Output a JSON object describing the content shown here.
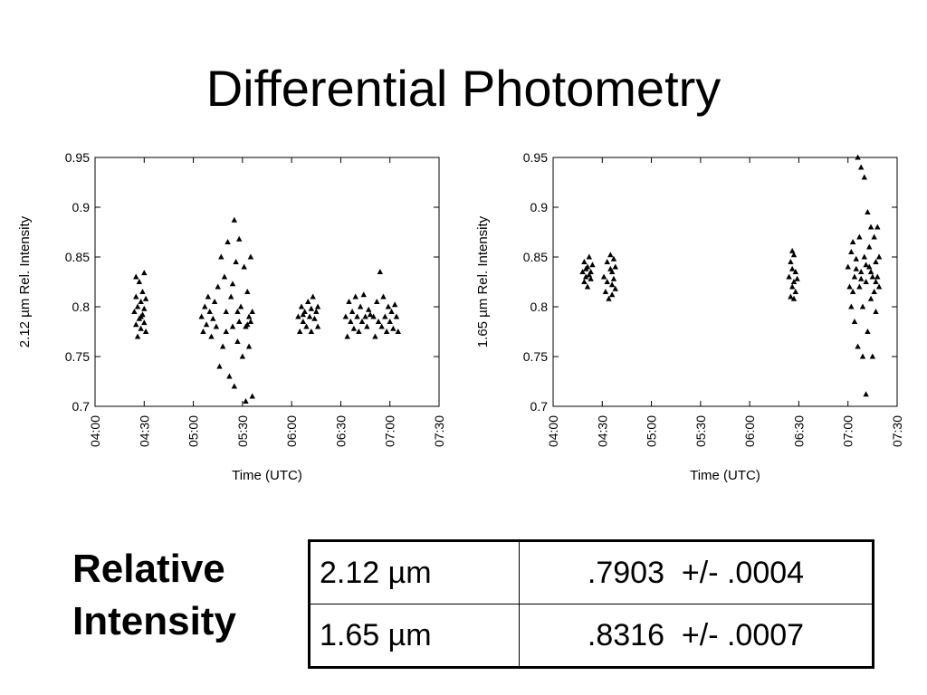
{
  "slide": {
    "title": "Differential Photometry"
  },
  "summary": {
    "label_line1": "Relative",
    "label_line2": "Intensity",
    "rows": [
      {
        "band": "2.12 µm",
        "value": ".7903  +/- .0004"
      },
      {
        "band": "1.65 µm",
        "value": ".8316  +/- .0007"
      }
    ]
  },
  "chart_data": [
    {
      "type": "scatter",
      "marker": "triangle",
      "xlabel": "Time (UTC)",
      "ylabel": "2.12 µm Rel. Intensity",
      "xlim": [
        "04:00",
        "07:30"
      ],
      "ylim": [
        0.7,
        0.95
      ],
      "x_ticks": [
        "04:00",
        "04:30",
        "05:00",
        "05:30",
        "06:00",
        "06:30",
        "07:00",
        "07:30"
      ],
      "y_ticks": [
        "0.95",
        "0.9",
        "0.85",
        "0.8",
        "0.75",
        "0.7"
      ],
      "grid": false,
      "series": [
        {
          "points": [
            [
              "04:24",
              0.795
            ],
            [
              "04:25",
              0.782
            ],
            [
              "04:25",
              0.81
            ],
            [
              "04:26",
              0.77
            ],
            [
              "04:26",
              0.8
            ],
            [
              "04:27",
              0.788
            ],
            [
              "04:27",
              0.825
            ],
            [
              "04:28",
              0.778
            ],
            [
              "04:28",
              0.805
            ],
            [
              "04:29",
              0.792
            ],
            [
              "04:29",
              0.815
            ],
            [
              "04:30",
              0.784
            ],
            [
              "04:30",
              0.798
            ],
            [
              "04:31",
              0.775
            ],
            [
              "04:31",
              0.808
            ],
            [
              "04:25",
              0.83
            ],
            [
              "04:28",
              0.79
            ],
            [
              "04:30",
              0.834
            ],
            [
              "05:05",
              0.79
            ],
            [
              "05:06",
              0.775
            ],
            [
              "05:07",
              0.8
            ],
            [
              "05:08",
              0.782
            ],
            [
              "05:09",
              0.81
            ],
            [
              "05:10",
              0.795
            ],
            [
              "05:11",
              0.77
            ],
            [
              "05:12",
              0.788
            ],
            [
              "05:13",
              0.805
            ],
            [
              "05:14",
              0.78
            ],
            [
              "05:15",
              0.82
            ],
            [
              "05:16",
              0.74
            ],
            [
              "05:17",
              0.85
            ],
            [
              "05:18",
              0.76
            ],
            [
              "05:19",
              0.83
            ],
            [
              "05:20",
              0.795
            ],
            [
              "05:21",
              0.865
            ],
            [
              "05:22",
              0.73
            ],
            [
              "05:23",
              0.81
            ],
            [
              "05:24",
              0.78
            ],
            [
              "05:25",
              0.887
            ],
            [
              "05:25",
              0.72
            ],
            [
              "05:26",
              0.845
            ],
            [
              "05:27",
              0.795
            ],
            [
              "05:27",
              0.765
            ],
            [
              "05:28",
              0.868
            ],
            [
              "05:29",
              0.8
            ],
            [
              "05:30",
              0.75
            ],
            [
              "05:31",
              0.84
            ],
            [
              "05:32",
              0.78
            ],
            [
              "05:32",
              0.705
            ],
            [
              "05:33",
              0.815
            ],
            [
              "05:34",
              0.79
            ],
            [
              "05:34",
              0.76
            ],
            [
              "05:35",
              0.85
            ],
            [
              "05:35",
              0.785
            ],
            [
              "05:36",
              0.71
            ],
            [
              "05:36",
              0.795
            ],
            [
              "05:20",
              0.775
            ],
            [
              "05:28",
              0.785
            ],
            [
              "05:33",
              0.782
            ],
            [
              "05:24",
              0.823
            ],
            [
              "06:04",
              0.79
            ],
            [
              "06:05",
              0.775
            ],
            [
              "06:06",
              0.8
            ],
            [
              "06:07",
              0.785
            ],
            [
              "06:08",
              0.795
            ],
            [
              "06:09",
              0.78
            ],
            [
              "06:10",
              0.805
            ],
            [
              "06:11",
              0.79
            ],
            [
              "06:12",
              0.775
            ],
            [
              "06:13",
              0.81
            ],
            [
              "06:14",
              0.788
            ],
            [
              "06:15",
              0.795
            ],
            [
              "06:16",
              0.78
            ],
            [
              "06:16",
              0.8
            ],
            [
              "06:07",
              0.792
            ],
            [
              "06:12",
              0.798
            ],
            [
              "06:33",
              0.79
            ],
            [
              "06:34",
              0.77
            ],
            [
              "06:35",
              0.805
            ],
            [
              "06:36",
              0.785
            ],
            [
              "06:37",
              0.795
            ],
            [
              "06:38",
              0.778
            ],
            [
              "06:39",
              0.81
            ],
            [
              "06:40",
              0.79
            ],
            [
              "06:41",
              0.775
            ],
            [
              "06:42",
              0.8
            ],
            [
              "06:43",
              0.785
            ],
            [
              "06:44",
              0.812
            ],
            [
              "06:45",
              0.79
            ],
            [
              "06:46",
              0.78
            ],
            [
              "06:47",
              0.797
            ],
            [
              "06:48",
              0.792
            ],
            [
              "06:50",
              0.79
            ],
            [
              "06:51",
              0.77
            ],
            [
              "06:52",
              0.805
            ],
            [
              "06:53",
              0.785
            ],
            [
              "06:54",
              0.835
            ],
            [
              "06:55",
              0.78
            ],
            [
              "06:56",
              0.81
            ],
            [
              "06:57",
              0.79
            ],
            [
              "06:58",
              0.775
            ],
            [
              "06:59",
              0.8
            ],
            [
              "07:00",
              0.785
            ],
            [
              "07:01",
              0.795
            ],
            [
              "07:02",
              0.778
            ],
            [
              "07:03",
              0.802
            ],
            [
              "07:04",
              0.79
            ],
            [
              "07:05",
              0.775
            ]
          ]
        }
      ]
    },
    {
      "type": "scatter",
      "marker": "triangle",
      "xlabel": "Time (UTC)",
      "ylabel": "1.65 µm Rel. Intensity",
      "xlim": [
        "04:00",
        "07:30"
      ],
      "ylim": [
        0.7,
        0.95
      ],
      "x_ticks": [
        "04:00",
        "04:30",
        "05:00",
        "05:30",
        "06:00",
        "06:30",
        "07:00",
        "07:30"
      ],
      "y_ticks": [
        "0.95",
        "0.9",
        "0.85",
        "0.8",
        "0.75",
        "0.7"
      ],
      "grid": false,
      "series": [
        {
          "points": [
            [
              "04:18",
              0.835
            ],
            [
              "04:19",
              0.825
            ],
            [
              "04:19",
              0.845
            ],
            [
              "04:20",
              0.83
            ],
            [
              "04:21",
              0.84
            ],
            [
              "04:21",
              0.82
            ],
            [
              "04:22",
              0.85
            ],
            [
              "04:23",
              0.835
            ],
            [
              "04:23",
              0.828
            ],
            [
              "04:24",
              0.842
            ],
            [
              "04:20",
              0.838
            ],
            [
              "04:22",
              0.832
            ],
            [
              "04:31",
              0.83
            ],
            [
              "04:32",
              0.815
            ],
            [
              "04:33",
              0.845
            ],
            [
              "04:34",
              0.808
            ],
            [
              "04:35",
              0.838
            ],
            [
              "04:35",
              0.852
            ],
            [
              "04:36",
              0.822
            ],
            [
              "04:36",
              0.812
            ],
            [
              "04:37",
              0.848
            ],
            [
              "04:37",
              0.828
            ],
            [
              "04:38",
              0.84
            ],
            [
              "04:38",
              0.818
            ],
            [
              "04:33",
              0.825
            ],
            [
              "04:36",
              0.835
            ],
            [
              "06:24",
              0.83
            ],
            [
              "06:25",
              0.81
            ],
            [
              "06:25",
              0.845
            ],
            [
              "06:26",
              0.82
            ],
            [
              "06:26",
              0.838
            ],
            [
              "06:27",
              0.825
            ],
            [
              "06:27",
              0.852
            ],
            [
              "06:28",
              0.815
            ],
            [
              "06:28",
              0.835
            ],
            [
              "06:29",
              0.828
            ],
            [
              "06:26",
              0.856
            ],
            [
              "06:27",
              0.808
            ],
            [
              "07:00",
              0.84
            ],
            [
              "07:01",
              0.82
            ],
            [
              "07:02",
              0.855
            ],
            [
              "07:02",
              0.8
            ],
            [
              "07:03",
              0.865
            ],
            [
              "07:04",
              0.83
            ],
            [
              "07:04",
              0.785
            ],
            [
              "07:05",
              0.848
            ],
            [
              "07:06",
              0.95
            ],
            [
              "07:06",
              0.76
            ],
            [
              "07:07",
              0.82
            ],
            [
              "07:07",
              0.87
            ],
            [
              "07:08",
              0.94
            ],
            [
              "07:08",
              0.835
            ],
            [
              "07:09",
              0.75
            ],
            [
              "07:09",
              0.8
            ],
            [
              "07:10",
              0.93
            ],
            [
              "07:10",
              0.85
            ],
            [
              "07:11",
              0.712
            ],
            [
              "07:11",
              0.825
            ],
            [
              "07:12",
              0.895
            ],
            [
              "07:12",
              0.775
            ],
            [
              "07:13",
              0.86
            ],
            [
              "07:13",
              0.84
            ],
            [
              "07:14",
              0.808
            ],
            [
              "07:14",
              0.88
            ],
            [
              "07:15",
              0.75
            ],
            [
              "07:15",
              0.83
            ],
            [
              "07:16",
              0.87
            ],
            [
              "07:16",
              0.815
            ],
            [
              "07:17",
              0.845
            ],
            [
              "07:17",
              0.795
            ],
            [
              "07:18",
              0.83
            ],
            [
              "07:18",
              0.88
            ],
            [
              "07:19",
              0.82
            ],
            [
              "07:19",
              0.85
            ],
            [
              "07:05",
              0.838
            ],
            [
              "07:08",
              0.828
            ],
            [
              "07:11",
              0.842
            ],
            [
              "07:14",
              0.835
            ],
            [
              "07:17",
              0.825
            ],
            [
              "07:03",
              0.815
            ]
          ]
        }
      ]
    }
  ]
}
